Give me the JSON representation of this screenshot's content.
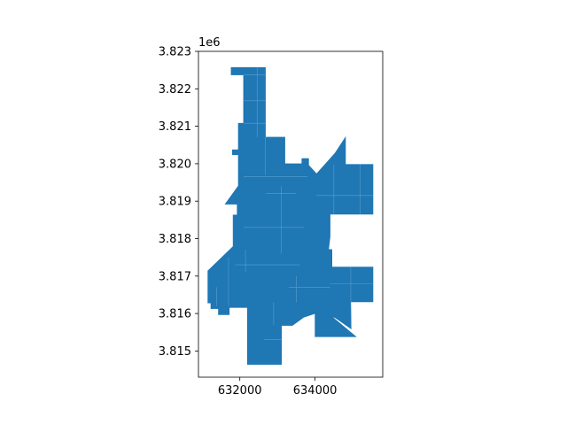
{
  "chart_data": {
    "type": "map",
    "title": "",
    "xlabel": "",
    "ylabel": "",
    "grid": false,
    "legend": "none",
    "xlim": [
      630900,
      635800
    ],
    "ylim": [
      3814300,
      3823000
    ],
    "xticks": [
      632000,
      634000
    ],
    "xtick_labels": [
      "632000",
      "634000"
    ],
    "yticks": [
      3815000,
      3816000,
      3817000,
      3818000,
      3819000,
      3820000,
      3821000,
      3822000,
      3823000
    ],
    "ytick_labels": [
      "3.815",
      "3.816",
      "3.817",
      "3.818",
      "3.819",
      "3.820",
      "3.821",
      "3.822",
      "3.823"
    ],
    "y_offset_label": "1e6",
    "fill_color": "#1f77b4",
    "edge_color": "#5a9fd0",
    "outline": [
      [
        631770,
        3822570
      ],
      [
        632680,
        3822570
      ],
      [
        632680,
        3820710
      ],
      [
        633200,
        3820710
      ],
      [
        633200,
        3820000
      ],
      [
        633650,
        3820000
      ],
      [
        633650,
        3820140
      ],
      [
        633830,
        3820140
      ],
      [
        633830,
        3819960
      ],
      [
        634040,
        3819730
      ],
      [
        634530,
        3820280
      ],
      [
        634810,
        3820710
      ],
      [
        634810,
        3819980
      ],
      [
        635540,
        3819980
      ],
      [
        635540,
        3818650
      ],
      [
        634400,
        3818650
      ],
      [
        634400,
        3818050
      ],
      [
        634360,
        3817710
      ],
      [
        634450,
        3817710
      ],
      [
        634450,
        3817240
      ],
      [
        635540,
        3817240
      ],
      [
        635540,
        3816310
      ],
      [
        634950,
        3816310
      ],
      [
        634960,
        3815590
      ],
      [
        634550,
        3815880
      ],
      [
        633650,
        3816270
      ],
      [
        634350,
        3816000
      ],
      [
        635090,
        3815380
      ],
      [
        634000,
        3815380
      ],
      [
        634000,
        3816000
      ],
      [
        633700,
        3815900
      ],
      [
        633400,
        3815680
      ],
      [
        633110,
        3815680
      ],
      [
        633110,
        3814640
      ],
      [
        632200,
        3814640
      ],
      [
        632200,
        3816160
      ],
      [
        631720,
        3816160
      ],
      [
        631720,
        3815970
      ],
      [
        631430,
        3815970
      ],
      [
        631430,
        3816130
      ],
      [
        631230,
        3816130
      ],
      [
        631230,
        3816280
      ],
      [
        631150,
        3816280
      ],
      [
        631150,
        3817140
      ],
      [
        631820,
        3817790
      ],
      [
        631820,
        3818630
      ],
      [
        631930,
        3818630
      ],
      [
        631930,
        3818920
      ],
      [
        631610,
        3818920
      ],
      [
        631960,
        3819410
      ],
      [
        631960,
        3820240
      ],
      [
        631800,
        3820240
      ],
      [
        631800,
        3820370
      ],
      [
        631960,
        3820370
      ],
      [
        631960,
        3821080
      ],
      [
        632100,
        3821080
      ],
      [
        632100,
        3822370
      ],
      [
        631770,
        3822370
      ]
    ],
    "internal_lines": [
      [
        [
          632100,
          3821080
        ],
        [
          632680,
          3821080
        ]
      ],
      [
        [
          632100,
          3821680
        ],
        [
          632680,
          3821680
        ]
      ],
      [
        [
          632100,
          3822370
        ],
        [
          632680,
          3822370
        ]
      ],
      [
        [
          632460,
          3822570
        ],
        [
          632460,
          3820710
        ]
      ],
      [
        [
          632680,
          3820710
        ],
        [
          632680,
          3819700
        ]
      ],
      [
        [
          632100,
          3819650
        ],
        [
          633800,
          3819650
        ]
      ],
      [
        [
          632700,
          3819200
        ],
        [
          633500,
          3819200
        ]
      ],
      [
        [
          634040,
          3819150
        ],
        [
          635540,
          3819150
        ]
      ],
      [
        [
          634500,
          3819980
        ],
        [
          634500,
          3818650
        ]
      ],
      [
        [
          635200,
          3819980
        ],
        [
          635200,
          3818650
        ]
      ],
      [
        [
          632100,
          3818300
        ],
        [
          633700,
          3818300
        ]
      ],
      [
        [
          633100,
          3819400
        ],
        [
          633100,
          3817600
        ]
      ],
      [
        [
          631880,
          3817300
        ],
        [
          633600,
          3817300
        ]
      ],
      [
        [
          631380,
          3816700
        ],
        [
          631380,
          3816200
        ]
      ],
      [
        [
          631700,
          3817500
        ],
        [
          631700,
          3816200
        ]
      ],
      [
        [
          633500,
          3817000
        ],
        [
          633500,
          3816300
        ]
      ],
      [
        [
          632900,
          3816300
        ],
        [
          632900,
          3815700
        ]
      ],
      [
        [
          634400,
          3816800
        ],
        [
          635540,
          3816800
        ]
      ],
      [
        [
          634950,
          3817240
        ],
        [
          634950,
          3816310
        ]
      ],
      [
        [
          633300,
          3816700
        ],
        [
          634400,
          3816700
        ]
      ],
      [
        [
          632150,
          3817700
        ],
        [
          632150,
          3817100
        ]
      ],
      [
        [
          632650,
          3815300
        ],
        [
          633110,
          3815300
        ]
      ]
    ]
  }
}
